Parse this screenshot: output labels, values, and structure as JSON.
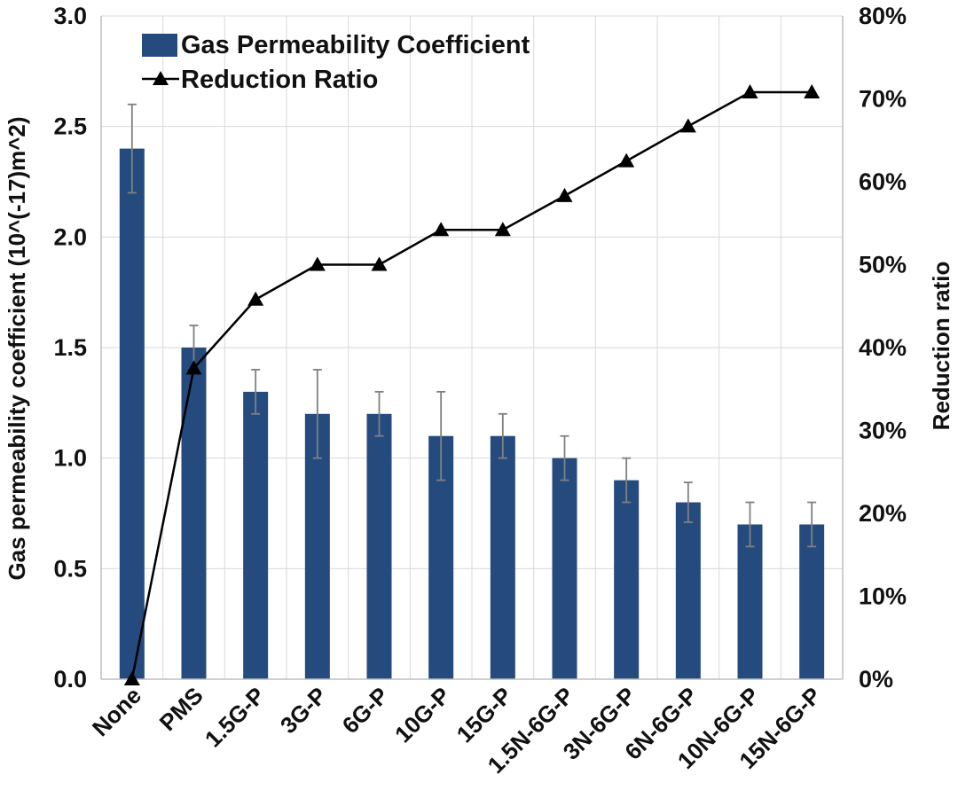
{
  "chart_data": {
    "type": "bar+line",
    "title": "",
    "categories": [
      "None",
      "PMS",
      "1.5G-P",
      "3G-P",
      "6G-P",
      "10G-P",
      "15G-P",
      "1.5N-6G-P",
      "3N-6G-P",
      "6N-6G-P",
      "10N-6G-P",
      "15N-6G-P"
    ],
    "series": [
      {
        "name": "Gas Permeability Coefficient",
        "kind": "bar",
        "axis": "left",
        "color": "#254b7e",
        "values": [
          2.4,
          1.5,
          1.3,
          1.2,
          1.2,
          1.1,
          1.1,
          1.0,
          0.9,
          0.8,
          0.7,
          0.7
        ],
        "error": [
          0.2,
          0.1,
          0.1,
          0.2,
          0.1,
          0.2,
          0.1,
          0.1,
          0.1,
          0.09,
          0.1,
          0.1
        ]
      },
      {
        "name": "Reduction Ratio",
        "kind": "line",
        "axis": "right",
        "color": "#000000",
        "marker": "triangle",
        "values": [
          0,
          37.5,
          45.8,
          50.0,
          50.0,
          54.2,
          54.2,
          58.3,
          62.5,
          66.7,
          70.8,
          70.8
        ]
      }
    ],
    "left_axis": {
      "label": "Gas permeability coefficient (10^(-17)m^2)",
      "ylim": [
        0,
        3.0
      ],
      "ticks": [
        "0.0",
        "0.5",
        "1.0",
        "1.5",
        "2.0",
        "2.5",
        "3.0"
      ]
    },
    "right_axis": {
      "label": "Reduction ratio",
      "ylim": [
        0,
        80
      ],
      "ticks": [
        "0%",
        "10%",
        "20%",
        "30%",
        "40%",
        "50%",
        "60%",
        "70%",
        "80%"
      ]
    },
    "legend": {
      "placement": "top-left",
      "entries": [
        "Gas Permeability Coefficient",
        "Reduction Ratio"
      ]
    },
    "grid": true
  }
}
